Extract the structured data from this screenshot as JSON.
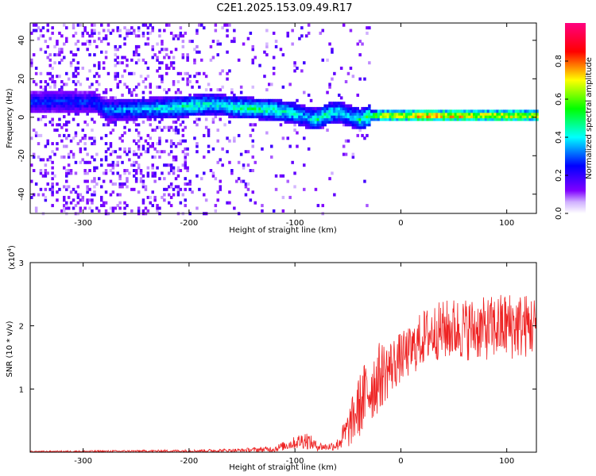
{
  "title": "C2E1.2025.153.09.49.R17",
  "chart_data": [
    {
      "type": "heatmap",
      "title": "C2E1.2025.153.09.49.R17",
      "xlabel": "Height of straight line (km)",
      "ylabel": "Frequency (Hz)",
      "xlim": [
        -350,
        128
      ],
      "ylim": [
        -50,
        49
      ],
      "xticks": [
        -300,
        -200,
        -100,
        0,
        100
      ],
      "yticks": [
        -40,
        -20,
        0,
        20,
        40
      ],
      "grid": false,
      "colorbar": {
        "label": "Normalized spectral amplitude",
        "range": [
          0,
          1
        ],
        "ticks": [
          "0.0",
          "0.2",
          "0.4",
          "0.6",
          "0.8"
        ],
        "colors": [
          "#ffffff",
          "#8000ff",
          "#0000ff",
          "#00ffff",
          "#00ff00",
          "#ffff00",
          "#ff0000",
          "#ff0080"
        ]
      },
      "ridge": {
        "x": [
          -290,
          -280,
          -220,
          -200,
          -180,
          -150,
          -120,
          -100,
          -90,
          -80,
          -70,
          -60,
          -50,
          -40,
          -30,
          -20,
          0,
          20,
          50,
          80,
          100,
          128
        ],
        "frequency": [
          8,
          4,
          5,
          6,
          7,
          5,
          4,
          2,
          0,
          -1,
          2,
          3,
          1,
          -1,
          1,
          1,
          1,
          1,
          1,
          1,
          1,
          1
        ],
        "amplitude": [
          0.3,
          0.35,
          0.45,
          0.5,
          0.45,
          0.5,
          0.5,
          0.45,
          0.4,
          0.5,
          0.5,
          0.45,
          0.4,
          0.5,
          0.6,
          0.75,
          0.8,
          0.85,
          0.85,
          0.8,
          0.8,
          0.75
        ]
      }
    },
    {
      "type": "line",
      "xlabel": "Height of straight line (km)",
      "ylabel": "SNR (10 * v/v)",
      "ylabel_scale": "(x10",
      "ylabel_scale_exp": "4",
      "ylabel_scale_close": ")",
      "xlim": [
        -350,
        128
      ],
      "ylim": [
        0,
        3
      ],
      "xticks": [
        -300,
        -200,
        -100,
        0,
        100
      ],
      "yticks": [
        1,
        2,
        3
      ],
      "grid": false,
      "series": [
        {
          "color": "#ee2222",
          "envelope": {
            "x": [
              -350,
              -200,
              -150,
              -120,
              -100,
              -90,
              -80,
              -70,
              -60,
              -50,
              -40,
              -30,
              -20,
              -10,
              0,
              10,
              20,
              30,
              50,
              80,
              100,
              128
            ],
            "mean": [
              0.01,
              0.02,
              0.03,
              0.05,
              0.15,
              0.2,
              0.1,
              0.08,
              0.12,
              0.35,
              0.7,
              1.0,
              1.2,
              1.35,
              1.5,
              1.6,
              1.8,
              1.9,
              1.95,
              1.95,
              2.0,
              2.0
            ],
            "spread": [
              0.01,
              0.02,
              0.03,
              0.05,
              0.1,
              0.15,
              0.08,
              0.05,
              0.1,
              0.3,
              0.5,
              0.6,
              0.55,
              0.45,
              0.4,
              0.4,
              0.45,
              0.45,
              0.5,
              0.5,
              0.55,
              0.5
            ]
          }
        }
      ]
    }
  ]
}
